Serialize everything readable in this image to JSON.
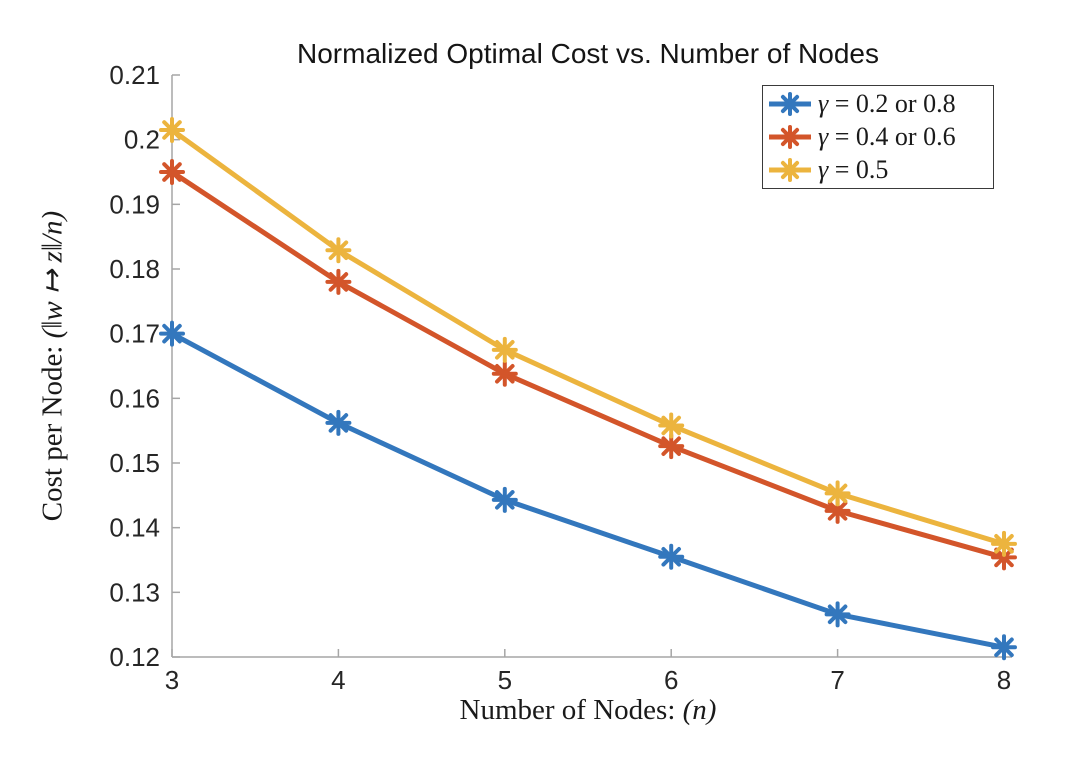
{
  "chart_data": {
    "type": "line",
    "title": "Normalized Optimal Cost vs. Number of Nodes",
    "xlabel_prefix": "Number of Nodes: ",
    "xlabel_math": "(n)",
    "ylabel_prefix": "Cost per Node: ",
    "ylabel_math": "(‖w ↦ z‖/n)",
    "x": [
      3,
      4,
      5,
      6,
      7,
      8
    ],
    "xlim": [
      3,
      8
    ],
    "ylim": [
      0.12,
      0.21
    ],
    "xtick_labels": [
      "3",
      "4",
      "5",
      "6",
      "7",
      "8"
    ],
    "ytick_values": [
      0.12,
      0.13,
      0.14,
      0.15,
      0.16,
      0.17,
      0.18,
      0.19,
      0.2,
      0.21
    ],
    "ytick_labels": [
      "0.12",
      "0.13",
      "0.14",
      "0.15",
      "0.16",
      "0.17",
      "0.18",
      "0.19",
      "0.2",
      "0.21"
    ],
    "grid": false,
    "legend_position": "top-right",
    "axis_color": "#a6a6a6",
    "tick_label_color": "#262626",
    "series": [
      {
        "name": "gamma-0.2-or-0.8",
        "label": "γ = 0.2 or 0.8",
        "color": "#3377BD",
        "marker": "asterisk",
        "values": [
          0.17,
          0.1562,
          0.1443,
          0.1355,
          0.1266,
          0.1215
        ]
      },
      {
        "name": "gamma-0.4-or-0.6",
        "label": "γ = 0.4 or 0.6",
        "color": "#D3552A",
        "marker": "asterisk",
        "values": [
          0.195,
          0.178,
          0.1638,
          0.1526,
          0.1426,
          0.1354
        ]
      },
      {
        "name": "gamma-0.5",
        "label": "γ = 0.5",
        "color": "#ECB43E",
        "marker": "asterisk",
        "values": [
          0.2015,
          0.1829,
          0.1675,
          0.1558,
          0.1453,
          0.1375
        ]
      }
    ]
  }
}
